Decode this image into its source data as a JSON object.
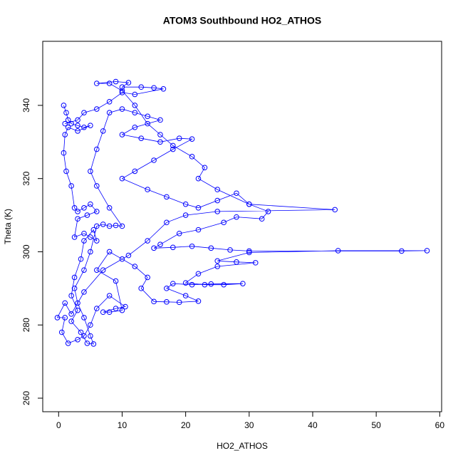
{
  "chart_data": {
    "type": "scatter",
    "title": "ATOM3 Southbound HO2_ATHOS",
    "x_label": "HO2_ATHOS",
    "y_label": "Theta (K)",
    "color": "#0000ff",
    "lines": true,
    "xlim": [
      -2.5,
      60.3
    ],
    "ylim": [
      256.3,
      357.5
    ],
    "xticks": [
      0,
      10,
      20,
      30,
      40,
      50,
      60
    ],
    "yticks": [
      260,
      280,
      300,
      320,
      340
    ],
    "x": [
      0.8,
      1.2,
      1.5,
      2,
      3,
      4,
      5,
      3,
      1.5,
      1,
      0.8,
      1.2,
      2,
      2.5,
      3,
      4,
      5,
      6,
      4.5,
      3,
      2.5,
      4,
      5,
      6,
      5.5,
      4,
      3.5,
      2.5,
      2,
      3,
      2,
      3.5,
      4.5,
      5.5,
      5,
      4,
      3,
      2.5,
      4,
      5,
      6,
      7,
      8,
      9,
      10,
      8,
      6,
      5,
      6,
      7,
      8,
      10,
      12,
      14,
      16,
      12,
      10,
      13,
      16,
      19,
      21,
      18,
      15,
      12,
      10,
      14,
      17,
      20,
      22,
      25,
      28,
      30,
      33,
      32,
      28,
      26,
      22,
      19,
      16,
      15,
      18,
      21,
      24,
      27,
      30,
      54,
      58,
      44,
      30,
      25,
      28,
      31,
      25,
      22,
      20,
      23,
      26,
      29,
      24,
      21,
      18,
      17,
      20,
      22,
      19,
      17,
      15,
      13,
      14,
      12,
      10,
      8,
      6,
      9,
      10,
      8,
      7,
      9,
      10.5,
      8,
      6,
      5,
      4,
      3,
      1.5,
      0.5,
      1,
      -0.2,
      1,
      2,
      4,
      7,
      11,
      14,
      17,
      20,
      25,
      43.5,
      30,
      25,
      22,
      23,
      21,
      18,
      16,
      14,
      12,
      10,
      8,
      6,
      9,
      11,
      10,
      13,
      15,
      16.5,
      12,
      10,
      8,
      6,
      4,
      3,
      1
    ],
    "values": [
      340,
      338,
      336,
      335,
      334.5,
      334,
      334.5,
      333,
      334,
      332,
      327,
      322,
      318,
      312,
      311,
      312,
      313,
      311,
      310,
      309,
      304,
      305,
      304,
      303,
      306,
      303,
      298,
      293,
      288,
      284,
      281,
      278,
      275,
      274.8,
      277,
      282,
      286,
      290,
      295,
      300,
      307,
      307.5,
      307,
      307.2,
      307,
      312,
      318,
      322,
      328,
      333,
      338,
      339,
      338,
      337,
      336,
      334,
      332,
      331,
      330,
      331,
      330.8,
      328,
      325,
      322,
      320,
      317,
      315,
      313,
      312,
      314,
      316,
      313,
      311,
      309,
      309.5,
      308,
      306,
      305,
      302,
      301,
      301.2,
      301.5,
      301,
      300.5,
      300.2,
      300.2,
      300.3,
      300.3,
      299.8,
      297.5,
      297.2,
      297,
      296,
      294,
      291.5,
      291,
      291,
      291.3,
      291.2,
      291,
      291.3,
      290,
      288,
      286.5,
      286.2,
      286.3,
      286.4,
      290,
      293,
      296,
      298,
      300,
      295,
      292,
      284,
      283.5,
      283.5,
      284.5,
      285,
      288,
      284.5,
      280,
      277,
      276,
      275,
      278,
      282,
      282,
      286,
      283,
      289,
      295,
      299,
      303,
      308,
      310,
      311,
      311.5,
      313,
      317,
      320,
      323,
      326,
      329,
      332,
      335,
      340,
      344,
      346,
      346,
      346.5,
      346.2,
      345,
      345,
      344.8,
      344.5,
      343,
      343.5,
      341,
      339,
      338,
      336,
      335
    ]
  }
}
